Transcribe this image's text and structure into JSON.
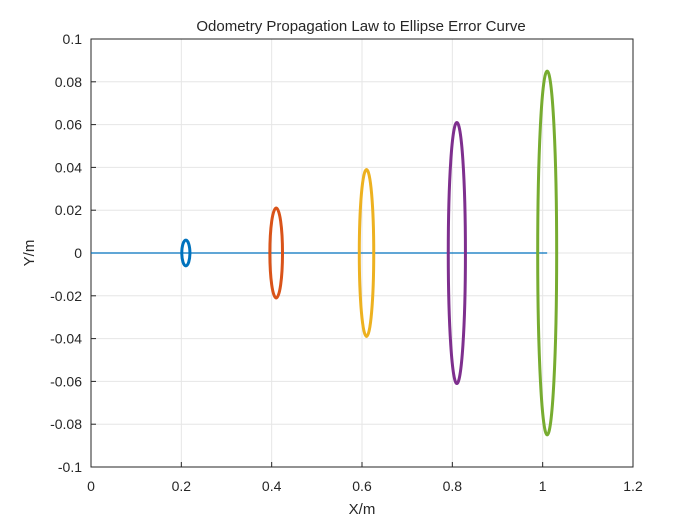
{
  "chart_data": {
    "type": "line",
    "title": "Odometry Propagation Law to  Ellipse Error Curve",
    "xlabel": "X/m",
    "ylabel": "Y/m",
    "xlim": [
      0,
      1.2
    ],
    "ylim": [
      -0.1,
      0.1
    ],
    "xticks": [
      "0",
      "0.2",
      "0.4",
      "0.6",
      "0.8",
      "1",
      "1.2"
    ],
    "yticks": [
      "0.1",
      "0.08",
      "0.06",
      "0.04",
      "0.02",
      "0",
      "-0.02",
      "-0.04",
      "-0.06",
      "-0.08",
      "-0.1"
    ],
    "grid": true,
    "path": {
      "x": [
        0,
        1.01
      ],
      "y": [
        0,
        0
      ],
      "color": "#0072BD"
    },
    "ellipses": [
      {
        "cx": 0.21,
        "cy": 0,
        "rx": 0.009,
        "ry": 0.006,
        "color": "#0072BD"
      },
      {
        "cx": 0.41,
        "cy": 0,
        "rx": 0.014,
        "ry": 0.021,
        "color": "#D95319"
      },
      {
        "cx": 0.61,
        "cy": 0,
        "rx": 0.016,
        "ry": 0.039,
        "color": "#EDB120"
      },
      {
        "cx": 0.81,
        "cy": 0,
        "rx": 0.019,
        "ry": 0.061,
        "color": "#7E2F8E"
      },
      {
        "cx": 1.01,
        "cy": 0,
        "rx": 0.021,
        "ry": 0.085,
        "color": "#77AC30"
      }
    ]
  }
}
